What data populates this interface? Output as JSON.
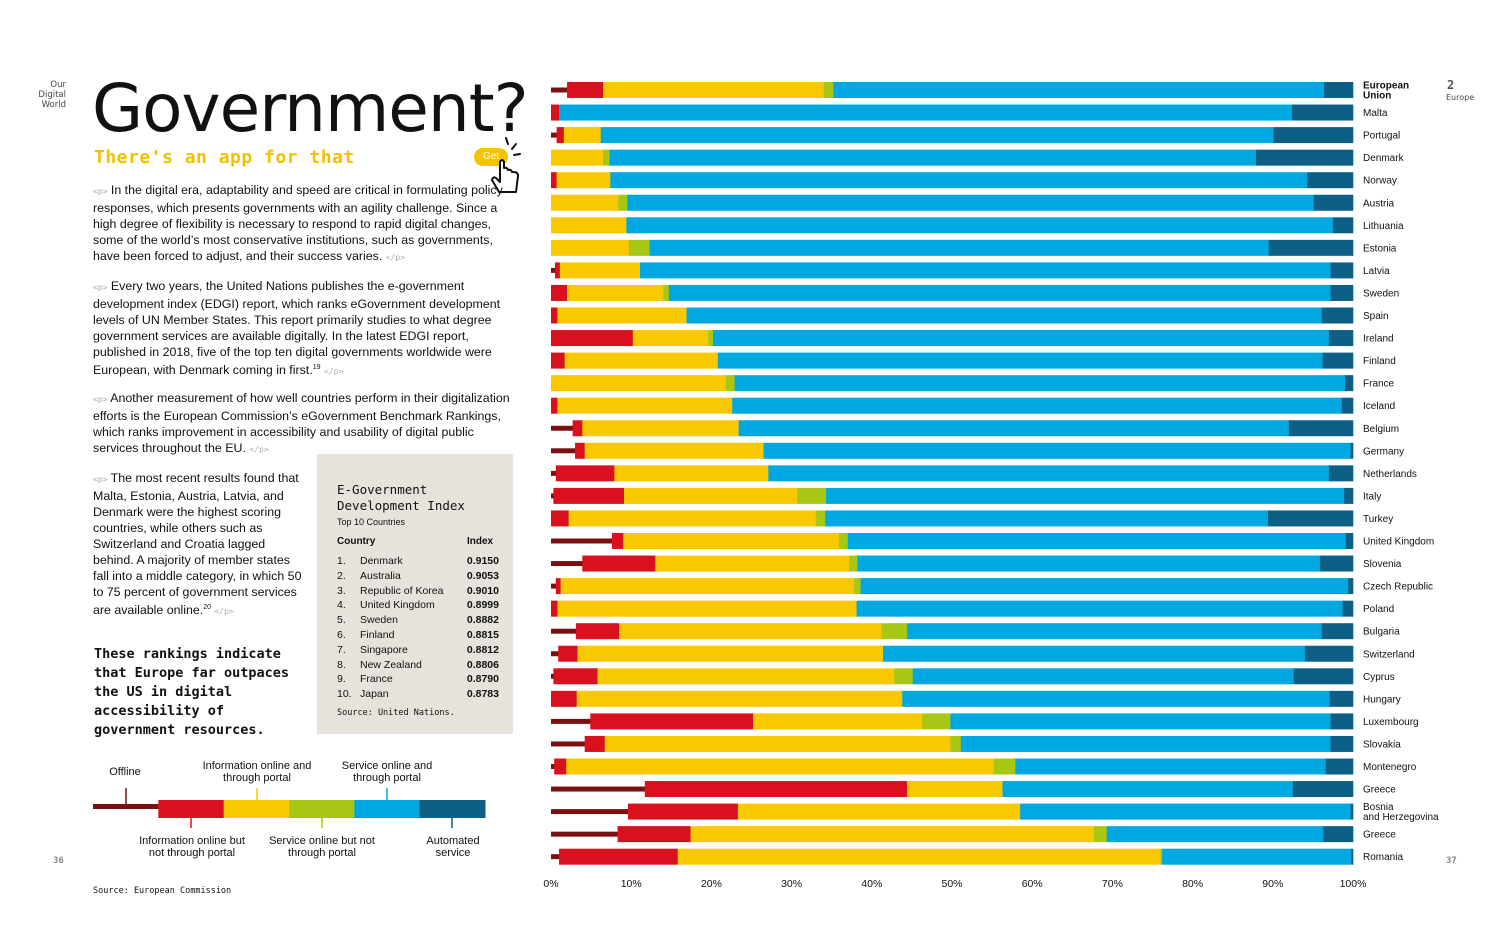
{
  "page": {
    "side_label": [
      "Our",
      "Digital",
      "World"
    ],
    "headline": "Government?",
    "subhead": "There's an app for that",
    "get_button": "Get",
    "paragraphs": [
      "In the digital era, adaptability and speed are critical in formulating policy responses, which presents governments with an agility challenge. Since a high degree of flexibility is necessary to respond to rapid digital changes, some of the world’s most conservative institutions, such as governments, have been forced to adjust, and their success varies.",
      "Every two years, the United Nations publishes the e-government development index (EDGI) report, which ranks eGovernment development levels of UN Member States. This report primarily studies to what degree government services are available digitally. In the latest EDGI report, published in 2018, five of the top ten digital governments worldwide were European, with Denmark coming in first.",
      "Another measurement of how well countries perform in their digitalization efforts is the European Commission’s eGovernment Benchmark Rankings, which ranks improvement in accessibility and usability of digital public services throughout the EU.",
      "The most recent results found that Malta, Estonia, Austria, Latvia, and Denmark were the highest scoring countries, while others such as Switzerland and Croatia lagged behind. A majority of member states fall into a middle category, in which 50 to 75 percent of government services are available online."
    ],
    "footnote_19": "19",
    "footnote_20": "20",
    "tag_open": "<p>",
    "tag_close": "</p>",
    "quote": "These rankings indicate that Europe far outpaces the US in digital accessibility of government resources.",
    "source": "Source: European Commission",
    "page_left": "36",
    "page_right": "37",
    "chapter_number": "2",
    "chapter_name": "Europe"
  },
  "edgi_box": {
    "title": "E-Government Development Index",
    "subtitle": "Top 10 Countries",
    "col_country": "Country",
    "col_index": "Index",
    "rows": [
      {
        "rank": "1.",
        "country": "Denmark",
        "index": "0.9150"
      },
      {
        "rank": "2.",
        "country": "Australia",
        "index": "0.9053"
      },
      {
        "rank": "3.",
        "country": "Republic of Korea",
        "index": "0.9010"
      },
      {
        "rank": "4.",
        "country": "United Kingdom",
        "index": "0.8999"
      },
      {
        "rank": "5.",
        "country": "Sweden",
        "index": "0.8882"
      },
      {
        "rank": "6.",
        "country": "Finland",
        "index": "0.8815"
      },
      {
        "rank": "7.",
        "country": "Singapore",
        "index": "0.8812"
      },
      {
        "rank": "8.",
        "country": "New Zealand",
        "index": "0.8806"
      },
      {
        "rank": "9.",
        "country": "France",
        "index": "0.8790"
      },
      {
        "rank": "10.",
        "country": "Japan",
        "index": "0.8783"
      }
    ],
    "source": "Source: United Nations."
  },
  "legend": {
    "items": [
      {
        "label": "Offline",
        "color": "#7a1010"
      },
      {
        "label": "Information online but not through portal",
        "color": "#d9101e"
      },
      {
        "label": "Information online and through portal",
        "color": "#f9c800"
      },
      {
        "label": "Service online but not through portal",
        "color": "#a8c614"
      },
      {
        "label": "Service online and through portal",
        "color": "#00a8e1"
      },
      {
        "label": "Automated service",
        "color": "#0d5f85"
      }
    ]
  },
  "chart_data": {
    "type": "bar",
    "orientation": "horizontal",
    "stacked": true,
    "xlim": [
      0,
      100
    ],
    "x_ticks": [
      "0%",
      "10%",
      "20%",
      "30%",
      "40%",
      "50%",
      "60%",
      "70%",
      "80%",
      "90%",
      "100%"
    ],
    "series_names": [
      "Offline",
      "Information online but not through portal",
      "Information online and through portal",
      "Service online but not through portal",
      "Service online and through portal",
      "Automated service"
    ],
    "categories": [
      {
        "label": "European Union",
        "values": [
          2.0,
          4.5,
          27.5,
          1.2,
          61.2,
          3.6
        ]
      },
      {
        "label": "Malta",
        "values": [
          0,
          1.0,
          0,
          0,
          91.4,
          7.6
        ]
      },
      {
        "label": "Portugal",
        "values": [
          0.7,
          0.9,
          4.6,
          0,
          83.9,
          9.9
        ]
      },
      {
        "label": "Denmark",
        "values": [
          0,
          0,
          6.5,
          0.8,
          80.6,
          12.1
        ]
      },
      {
        "label": "Norway",
        "values": [
          0,
          0.7,
          6.7,
          0,
          86.9,
          5.7
        ]
      },
      {
        "label": "Austria",
        "values": [
          0,
          0,
          8.4,
          1.1,
          85.6,
          4.9
        ]
      },
      {
        "label": "Lithuania",
        "values": [
          0,
          0,
          9.4,
          0,
          88.1,
          2.5
        ]
      },
      {
        "label": "Estonia",
        "values": [
          0,
          0,
          9.7,
          2.6,
          77.2,
          10.5
        ]
      },
      {
        "label": "Latvia",
        "values": [
          0.5,
          0.6,
          10.0,
          0,
          86.1,
          2.8
        ]
      },
      {
        "label": "Sweden",
        "values": [
          0,
          2.0,
          12.0,
          0.7,
          82.5,
          2.8
        ]
      },
      {
        "label": "Spain",
        "values": [
          0,
          0.8,
          16.1,
          0,
          79.2,
          3.9
        ]
      },
      {
        "label": "Ireland",
        "values": [
          0,
          10.2,
          9.4,
          0.6,
          76.8,
          3.0
        ]
      },
      {
        "label": "Finland",
        "values": [
          0,
          1.7,
          19.1,
          0,
          75.4,
          3.8
        ]
      },
      {
        "label": "France",
        "values": [
          0,
          0,
          21.8,
          1.1,
          76.1,
          1.0
        ]
      },
      {
        "label": "Iceland",
        "values": [
          0,
          0.8,
          21.8,
          0,
          76.0,
          1.4
        ]
      },
      {
        "label": "Belgium",
        "values": [
          2.7,
          1.2,
          19.5,
          0,
          68.6,
          8.0
        ]
      },
      {
        "label": "Germany",
        "values": [
          3.0,
          1.2,
          22.3,
          0,
          73.2,
          0.3
        ]
      },
      {
        "label": "Netherlands",
        "values": [
          0.6,
          7.3,
          19.2,
          0,
          69.9,
          3.0
        ]
      },
      {
        "label": "Italy",
        "values": [
          0.3,
          8.8,
          21.6,
          3.6,
          64.6,
          1.1
        ]
      },
      {
        "label": "Turkey",
        "values": [
          0,
          2.2,
          30.8,
          1.2,
          55.2,
          10.6
        ]
      },
      {
        "label": "United Kingdom",
        "values": [
          7.6,
          1.4,
          26.9,
          1.1,
          62.1,
          0.9
        ]
      },
      {
        "label": "Slovenia",
        "values": [
          3.9,
          9.1,
          24.2,
          1.0,
          57.7,
          4.1
        ]
      },
      {
        "label": "Czech Republic",
        "values": [
          0.6,
          0.6,
          36.6,
          0.8,
          60.8,
          0.6
        ]
      },
      {
        "label": "Poland",
        "values": [
          0,
          0.8,
          37.3,
          0,
          60.6,
          1.3
        ]
      },
      {
        "label": "Bulgaria",
        "values": [
          3.1,
          5.4,
          32.7,
          3.2,
          51.7,
          3.9
        ]
      },
      {
        "label": "Switzerland",
        "values": [
          0.9,
          2.4,
          38.1,
          0,
          52.6,
          6.0
        ]
      },
      {
        "label": "Cyprus",
        "values": [
          0.3,
          5.5,
          37.0,
          2.3,
          47.5,
          7.4
        ]
      },
      {
        "label": "Hungary",
        "values": [
          0,
          3.2,
          40.6,
          0,
          53.3,
          2.9
        ]
      },
      {
        "label": "Luxembourg",
        "values": [
          4.9,
          20.3,
          21.1,
          3.5,
          47.4,
          2.8
        ]
      },
      {
        "label": "Slovakia",
        "values": [
          4.2,
          2.5,
          43.1,
          1.3,
          46.1,
          2.8
        ]
      },
      {
        "label": "Montenegro",
        "values": [
          0.4,
          1.5,
          53.3,
          2.7,
          38.7,
          3.4
        ]
      },
      {
        "label": "Greece",
        "values": [
          11.7,
          32.7,
          11.9,
          0,
          36.2,
          7.5
        ]
      },
      {
        "label": "Bosnia and Herzegovina",
        "values": [
          9.6,
          13.7,
          35.2,
          0,
          41.2,
          0.3
        ]
      },
      {
        "label": "Greece",
        "values": [
          8.3,
          9.1,
          50.3,
          1.6,
          27.0,
          3.7
        ]
      },
      {
        "label": "Romania",
        "values": [
          1.0,
          14.8,
          60.2,
          0.2,
          23.6,
          0.2
        ]
      }
    ]
  }
}
